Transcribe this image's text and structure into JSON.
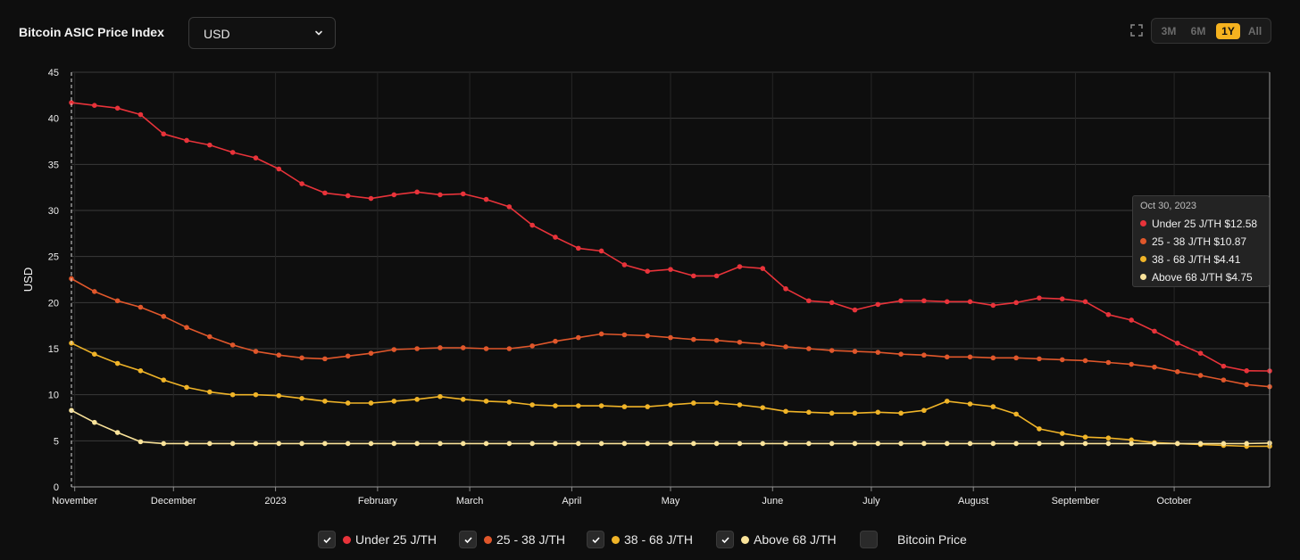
{
  "header": {
    "title": "Bitcoin ASIC Price Index",
    "currency_select": {
      "value": "USD"
    }
  },
  "range_buttons": [
    {
      "label": "3M",
      "active": false
    },
    {
      "label": "6M",
      "active": false
    },
    {
      "label": "1Y",
      "active": true
    },
    {
      "label": "All",
      "active": false
    }
  ],
  "colors": {
    "accent": "#f5b21f",
    "background": "#0e0e0e"
  },
  "chart_data": {
    "type": "line",
    "ylabel": "USD",
    "ylim": [
      0,
      45
    ],
    "yticks": [
      0,
      5,
      10,
      15,
      20,
      25,
      30,
      35,
      40,
      45
    ],
    "xlim": [
      "2022-10-31",
      "2023-10-30"
    ],
    "grid": true,
    "legend_position": "bottom",
    "month_ticks": [
      {
        "label": "November",
        "date": "2022-11-01"
      },
      {
        "label": "December",
        "date": "2022-12-01"
      },
      {
        "label": "2023",
        "date": "2023-01-01"
      },
      {
        "label": "February",
        "date": "2023-02-01"
      },
      {
        "label": "March",
        "date": "2023-03-01"
      },
      {
        "label": "April",
        "date": "2023-04-01"
      },
      {
        "label": "May",
        "date": "2023-05-01"
      },
      {
        "label": "June",
        "date": "2023-06-01"
      },
      {
        "label": "July",
        "date": "2023-07-01"
      },
      {
        "label": "August",
        "date": "2023-08-01"
      },
      {
        "label": "September",
        "date": "2023-09-01"
      },
      {
        "label": "October",
        "date": "2023-10-01"
      }
    ],
    "x": [
      "2022-10-31",
      "2022-11-07",
      "2022-11-14",
      "2022-11-21",
      "2022-11-28",
      "2022-12-05",
      "2022-12-12",
      "2022-12-19",
      "2022-12-26",
      "2023-01-02",
      "2023-01-09",
      "2023-01-16",
      "2023-01-23",
      "2023-01-30",
      "2023-02-06",
      "2023-02-13",
      "2023-02-20",
      "2023-02-27",
      "2023-03-06",
      "2023-03-13",
      "2023-03-20",
      "2023-03-27",
      "2023-04-03",
      "2023-04-10",
      "2023-04-17",
      "2023-04-24",
      "2023-05-01",
      "2023-05-08",
      "2023-05-15",
      "2023-05-22",
      "2023-05-29",
      "2023-06-05",
      "2023-06-12",
      "2023-06-19",
      "2023-06-26",
      "2023-07-03",
      "2023-07-10",
      "2023-07-17",
      "2023-07-24",
      "2023-07-31",
      "2023-08-07",
      "2023-08-14",
      "2023-08-21",
      "2023-08-28",
      "2023-09-04",
      "2023-09-11",
      "2023-09-18",
      "2023-09-25",
      "2023-10-02",
      "2023-10-09",
      "2023-10-16",
      "2023-10-23",
      "2023-10-30"
    ],
    "series": [
      {
        "name": "Under 25 J/TH",
        "color": "#e8333a",
        "values": [
          41.7,
          41.4,
          41.1,
          40.4,
          38.3,
          37.6,
          37.1,
          36.3,
          35.7,
          34.5,
          32.9,
          31.9,
          31.6,
          31.3,
          31.7,
          32.0,
          31.7,
          31.8,
          31.2,
          30.4,
          28.4,
          27.1,
          25.9,
          25.6,
          24.1,
          23.4,
          23.6,
          22.9,
          22.9,
          23.9,
          23.7,
          21.5,
          20.2,
          20.0,
          19.2,
          19.8,
          20.2,
          20.2,
          20.1,
          20.1,
          19.7,
          20.0,
          20.5,
          20.4,
          20.1,
          18.7,
          18.1,
          16.9,
          15.6,
          14.5,
          13.1,
          12.6,
          12.58
        ]
      },
      {
        "name": "25 - 38 J/TH",
        "color": "#e0572b",
        "values": [
          22.6,
          21.2,
          20.2,
          19.5,
          18.5,
          17.3,
          16.3,
          15.4,
          14.7,
          14.3,
          14.0,
          13.9,
          14.2,
          14.5,
          14.9,
          15.0,
          15.1,
          15.1,
          15.0,
          15.0,
          15.3,
          15.8,
          16.2,
          16.6,
          16.5,
          16.4,
          16.2,
          16.0,
          15.9,
          15.7,
          15.5,
          15.2,
          15.0,
          14.8,
          14.7,
          14.6,
          14.4,
          14.3,
          14.1,
          14.1,
          14.0,
          14.0,
          13.9,
          13.8,
          13.7,
          13.5,
          13.3,
          13.0,
          12.5,
          12.1,
          11.6,
          11.1,
          10.87
        ]
      },
      {
        "name": "38 - 68 J/TH",
        "color": "#f0b428",
        "values": [
          15.6,
          14.4,
          13.4,
          12.6,
          11.6,
          10.8,
          10.3,
          10.0,
          10.0,
          9.9,
          9.6,
          9.3,
          9.1,
          9.1,
          9.3,
          9.5,
          9.8,
          9.5,
          9.3,
          9.2,
          8.9,
          8.8,
          8.8,
          8.8,
          8.7,
          8.7,
          8.9,
          9.1,
          9.1,
          8.9,
          8.6,
          8.2,
          8.1,
          8.0,
          8.0,
          8.1,
          8.0,
          8.3,
          9.3,
          9.0,
          8.7,
          7.9,
          6.3,
          5.8,
          5.4,
          5.3,
          5.1,
          4.8,
          4.7,
          4.6,
          4.5,
          4.4,
          4.41
        ]
      },
      {
        "name": "Above 68 J/TH",
        "color": "#fae39a",
        "values": [
          8.3,
          7.0,
          5.9,
          4.9,
          4.7,
          4.7,
          4.7,
          4.7,
          4.7,
          4.7,
          4.7,
          4.7,
          4.7,
          4.7,
          4.7,
          4.7,
          4.7,
          4.7,
          4.7,
          4.7,
          4.7,
          4.7,
          4.7,
          4.7,
          4.7,
          4.7,
          4.7,
          4.7,
          4.7,
          4.7,
          4.7,
          4.7,
          4.7,
          4.7,
          4.7,
          4.7,
          4.7,
          4.7,
          4.7,
          4.7,
          4.7,
          4.7,
          4.7,
          4.7,
          4.7,
          4.7,
          4.7,
          4.7,
          4.7,
          4.7,
          4.7,
          4.7,
          4.75
        ]
      }
    ],
    "tooltip": {
      "date": "Oct 30, 2023",
      "rows": [
        {
          "label": "Under 25 J/TH $12.58",
          "color": "#e8333a"
        },
        {
          "label": "25 - 38 J/TH $10.87",
          "color": "#e0572b"
        },
        {
          "label": "38 - 68 J/TH $4.41",
          "color": "#f0b428"
        },
        {
          "label": "Above 68 J/TH $4.75",
          "color": "#fae39a"
        }
      ]
    }
  },
  "legend": [
    {
      "label": "Under 25 J/TH",
      "checked": true,
      "color": "#e8333a"
    },
    {
      "label": "25 - 38 J/TH",
      "checked": true,
      "color": "#e0572b"
    },
    {
      "label": "38 - 68 J/TH",
      "checked": true,
      "color": "#f0b428"
    },
    {
      "label": "Above 68 J/TH",
      "checked": true,
      "color": "#fae39a"
    },
    {
      "label": "Bitcoin Price",
      "checked": false
    }
  ]
}
